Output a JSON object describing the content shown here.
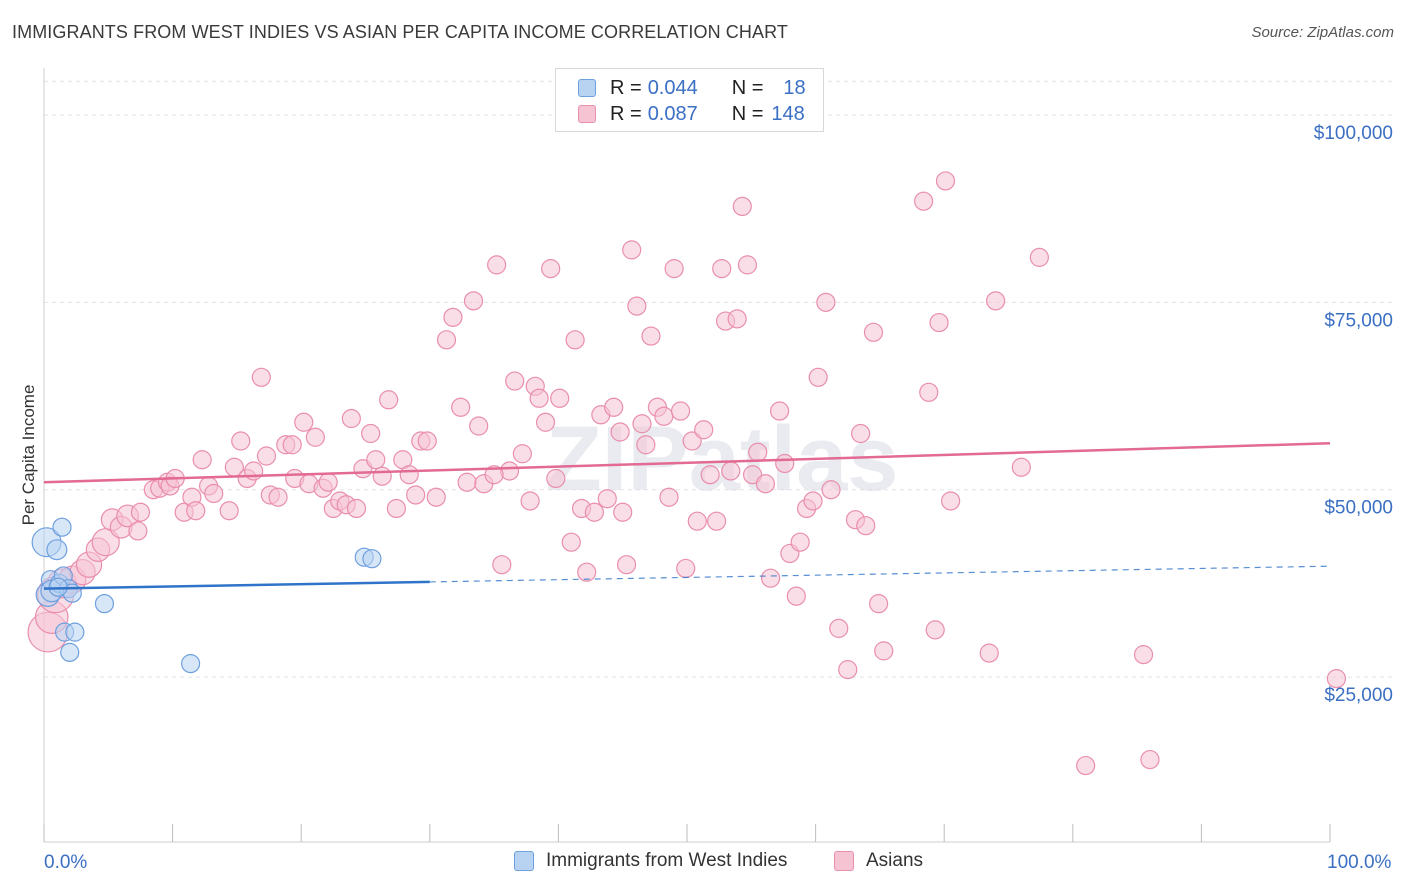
{
  "title": "IMMIGRANTS FROM WEST INDIES VS ASIAN PER CAPITA INCOME CORRELATION CHART",
  "source": "Source: ZipAtlas.com",
  "watermark": "ZIPatlas",
  "legend": {
    "r_label": "R =",
    "n_label": "N =",
    "rows": [
      {
        "r": "0.044",
        "n": "18"
      },
      {
        "r": "0.087",
        "n": "148"
      }
    ]
  },
  "bottom_legend": [
    "Immigrants from West Indies",
    "Asians"
  ],
  "x_tick_labels": [
    "0.0%",
    "100.0%"
  ],
  "colors": {
    "blue_fill": "#b8d3f2",
    "blue_stroke": "#6e9fde",
    "blue_line": "#2f74c9",
    "pink_fill": "#f6c3d3",
    "pink_stroke": "#e98eac",
    "pink_line": "#e26a93",
    "tick_text": "#3a6fc4",
    "grid": "#e3e3e3"
  },
  "chart_data": {
    "type": "scatter",
    "title": "IMMIGRANTS FROM WEST INDIES VS ASIAN PER CAPITA INCOME CORRELATION CHART",
    "xlabel": "",
    "ylabel": "Per Capita Income",
    "xlim": [
      0,
      100
    ],
    "ylim": [
      3000,
      106000
    ],
    "y_ticks": [
      {
        "value": 25000,
        "label": "$25,000"
      },
      {
        "value": 50000,
        "label": "$50,000"
      },
      {
        "value": 75000,
        "label": "$75,000"
      },
      {
        "value": 100000,
        "label": "$100,000"
      }
    ],
    "grid": true,
    "series": [
      {
        "name": "Immigrants from West Indies",
        "r": 0.044,
        "n": 18,
        "trend": {
          "x": [
            0,
            30,
            100
          ],
          "y": [
            36800,
            37700,
            39800
          ],
          "solid_until": 30
        },
        "points": [
          [
            0.2,
            43000,
            1.6
          ],
          [
            0.3,
            36000,
            1.3
          ],
          [
            0.5,
            38000,
            1.0
          ],
          [
            0.6,
            36500,
            1.2
          ],
          [
            1.0,
            42000,
            1.1
          ],
          [
            1.2,
            37500,
            1.0
          ],
          [
            1.4,
            45000,
            1.0
          ],
          [
            1.5,
            38500,
            1.0
          ],
          [
            1.6,
            31000,
            1.0
          ],
          [
            1.9,
            36800,
            1.0
          ],
          [
            2.0,
            28300,
            1.0
          ],
          [
            2.2,
            36200,
            1.0
          ],
          [
            2.4,
            31000,
            1.0
          ],
          [
            4.7,
            34800,
            1.0
          ],
          [
            11.4,
            26800,
            1.0
          ],
          [
            24.9,
            41000,
            1.0
          ],
          [
            25.5,
            40800,
            1.0
          ],
          [
            1.1,
            37000,
            1.0
          ]
        ]
      },
      {
        "name": "Asians",
        "r": 0.087,
        "n": 148,
        "trend": {
          "x": [
            0,
            100
          ],
          "y": [
            51000,
            56200
          ]
        },
        "points": [
          [
            0.3,
            31000,
            2.2
          ],
          [
            0.6,
            33000,
            1.8
          ],
          [
            0.9,
            36000,
            2.0
          ],
          [
            1.4,
            37500,
            1.6
          ],
          [
            2.2,
            38000,
            1.5
          ],
          [
            3.0,
            39000,
            1.4
          ],
          [
            3.5,
            40000,
            1.4
          ],
          [
            4.2,
            42000,
            1.3
          ],
          [
            4.8,
            43000,
            1.5
          ],
          [
            5.3,
            46000,
            1.2
          ],
          [
            6.0,
            45000,
            1.2
          ],
          [
            6.5,
            46500,
            1.2
          ],
          [
            7.3,
            44500,
            1.0
          ],
          [
            7.5,
            47000,
            1.0
          ],
          [
            8.5,
            50000,
            1.0
          ],
          [
            9.0,
            50200,
            1.0
          ],
          [
            9.6,
            51000,
            1.0
          ],
          [
            9.8,
            50500,
            1.0
          ],
          [
            10.2,
            51500,
            1.0
          ],
          [
            10.9,
            47000,
            1.0
          ],
          [
            11.5,
            49000,
            1.0
          ],
          [
            11.8,
            47200,
            1.0
          ],
          [
            12.3,
            54000,
            1.0
          ],
          [
            12.8,
            50500,
            1.0
          ],
          [
            13.2,
            49500,
            1.0
          ],
          [
            14.4,
            47200,
            1.0
          ],
          [
            14.8,
            53000,
            1.0
          ],
          [
            15.3,
            56500,
            1.0
          ],
          [
            15.8,
            51500,
            1.0
          ],
          [
            16.3,
            52500,
            1.0
          ],
          [
            16.9,
            65000,
            1.0
          ],
          [
            17.3,
            54500,
            1.0
          ],
          [
            17.6,
            49300,
            1.0
          ],
          [
            18.2,
            49000,
            1.0
          ],
          [
            18.8,
            56000,
            1.0
          ],
          [
            19.3,
            56000,
            1.0
          ],
          [
            19.5,
            51500,
            1.0
          ],
          [
            20.2,
            59000,
            1.0
          ],
          [
            20.6,
            50800,
            1.0
          ],
          [
            21.1,
            57000,
            1.0
          ],
          [
            21.7,
            50200,
            1.0
          ],
          [
            22.1,
            51000,
            1.0
          ],
          [
            22.5,
            47500,
            1.0
          ],
          [
            23.0,
            48500,
            1.0
          ],
          [
            23.5,
            48000,
            1.0
          ],
          [
            23.9,
            59500,
            1.0
          ],
          [
            24.3,
            47500,
            1.0
          ],
          [
            24.8,
            52800,
            1.0
          ],
          [
            25.4,
            57500,
            1.0
          ],
          [
            25.8,
            54000,
            1.0
          ],
          [
            26.3,
            51800,
            1.0
          ],
          [
            26.8,
            62000,
            1.0
          ],
          [
            27.4,
            47500,
            1.0
          ],
          [
            27.9,
            54000,
            1.0
          ],
          [
            28.4,
            52000,
            1.0
          ],
          [
            28.9,
            49300,
            1.0
          ],
          [
            29.3,
            56500,
            1.0
          ],
          [
            29.8,
            56500,
            1.0
          ],
          [
            30.5,
            49000,
            1.0
          ],
          [
            31.3,
            70000,
            1.0
          ],
          [
            31.8,
            73000,
            1.0
          ],
          [
            32.4,
            61000,
            1.0
          ],
          [
            32.9,
            51000,
            1.0
          ],
          [
            33.4,
            75200,
            1.0
          ],
          [
            33.8,
            58500,
            1.0
          ],
          [
            34.2,
            50800,
            1.0
          ],
          [
            35.2,
            80000,
            1.0
          ],
          [
            35.6,
            40000,
            1.0
          ],
          [
            36.2,
            52500,
            1.0
          ],
          [
            36.6,
            64500,
            1.0
          ],
          [
            37.2,
            54800,
            1.0
          ],
          [
            37.8,
            48500,
            1.0
          ],
          [
            38.2,
            63800,
            1.0
          ],
          [
            38.5,
            62200,
            1.0
          ],
          [
            39.0,
            59000,
            1.0
          ],
          [
            39.4,
            79500,
            1.0
          ],
          [
            39.8,
            51500,
            1.0
          ],
          [
            40.1,
            62200,
            1.0
          ],
          [
            41.0,
            43000,
            1.0
          ],
          [
            41.3,
            70000,
            1.0
          ],
          [
            41.8,
            47500,
            1.0
          ],
          [
            42.2,
            39000,
            1.0
          ],
          [
            42.8,
            47000,
            1.0
          ],
          [
            43.3,
            60000,
            1.0
          ],
          [
            43.8,
            48800,
            1.0
          ],
          [
            44.3,
            61000,
            1.0
          ],
          [
            44.8,
            57700,
            1.0
          ],
          [
            45.0,
            47000,
            1.0
          ],
          [
            45.3,
            40000,
            1.0
          ],
          [
            45.7,
            82000,
            1.0
          ],
          [
            46.1,
            74500,
            1.0
          ],
          [
            46.5,
            58800,
            1.0
          ],
          [
            46.8,
            56000,
            1.0
          ],
          [
            47.2,
            70500,
            1.0
          ],
          [
            47.7,
            61000,
            1.0
          ],
          [
            48.2,
            59800,
            1.0
          ],
          [
            48.6,
            49000,
            1.0
          ],
          [
            49.0,
            79500,
            1.0
          ],
          [
            49.5,
            60500,
            1.0
          ],
          [
            49.9,
            39500,
            1.0
          ],
          [
            50.4,
            56500,
            1.0
          ],
          [
            50.8,
            45800,
            1.0
          ],
          [
            51.3,
            58000,
            1.0
          ],
          [
            51.8,
            52000,
            1.0
          ],
          [
            52.3,
            45800,
            1.0
          ],
          [
            52.7,
            79500,
            1.0
          ],
          [
            53.0,
            72500,
            1.0
          ],
          [
            53.4,
            52500,
            1.0
          ],
          [
            53.9,
            72800,
            1.0
          ],
          [
            54.3,
            87800,
            1.0
          ],
          [
            54.7,
            80000,
            1.0
          ],
          [
            55.1,
            52000,
            1.0
          ],
          [
            55.5,
            55000,
            1.0
          ],
          [
            56.1,
            50800,
            1.0
          ],
          [
            56.5,
            38200,
            1.0
          ],
          [
            57.2,
            60500,
            1.0
          ],
          [
            57.6,
            53500,
            1.0
          ],
          [
            58.0,
            41500,
            1.0
          ],
          [
            58.5,
            35800,
            1.0
          ],
          [
            58.8,
            43000,
            1.0
          ],
          [
            59.3,
            47500,
            1.0
          ],
          [
            59.8,
            48500,
            1.0
          ],
          [
            60.2,
            65000,
            1.0
          ],
          [
            60.8,
            75000,
            1.0
          ],
          [
            61.2,
            50000,
            1.0
          ],
          [
            61.8,
            31500,
            1.0
          ],
          [
            62.5,
            26000,
            1.0
          ],
          [
            63.1,
            46000,
            1.0
          ],
          [
            63.5,
            57500,
            1.0
          ],
          [
            63.9,
            45200,
            1.0
          ],
          [
            64.5,
            71000,
            1.0
          ],
          [
            64.9,
            34800,
            1.0
          ],
          [
            65.3,
            28500,
            1.0
          ],
          [
            68.4,
            88500,
            1.0
          ],
          [
            68.8,
            63000,
            1.0
          ],
          [
            69.3,
            31300,
            1.0
          ],
          [
            69.6,
            72300,
            1.0
          ],
          [
            70.1,
            91200,
            1.0
          ],
          [
            70.5,
            48500,
            1.0
          ],
          [
            73.5,
            28200,
            1.0
          ],
          [
            74.0,
            75200,
            1.0
          ],
          [
            76.0,
            53000,
            1.0
          ],
          [
            77.4,
            81000,
            1.0
          ],
          [
            81.0,
            13200,
            1.0
          ],
          [
            85.5,
            28000,
            1.0
          ],
          [
            86.0,
            14000,
            1.0
          ],
          [
            100.5,
            24800,
            1.0
          ],
          [
            35.0,
            52000,
            1.0
          ]
        ]
      }
    ]
  }
}
